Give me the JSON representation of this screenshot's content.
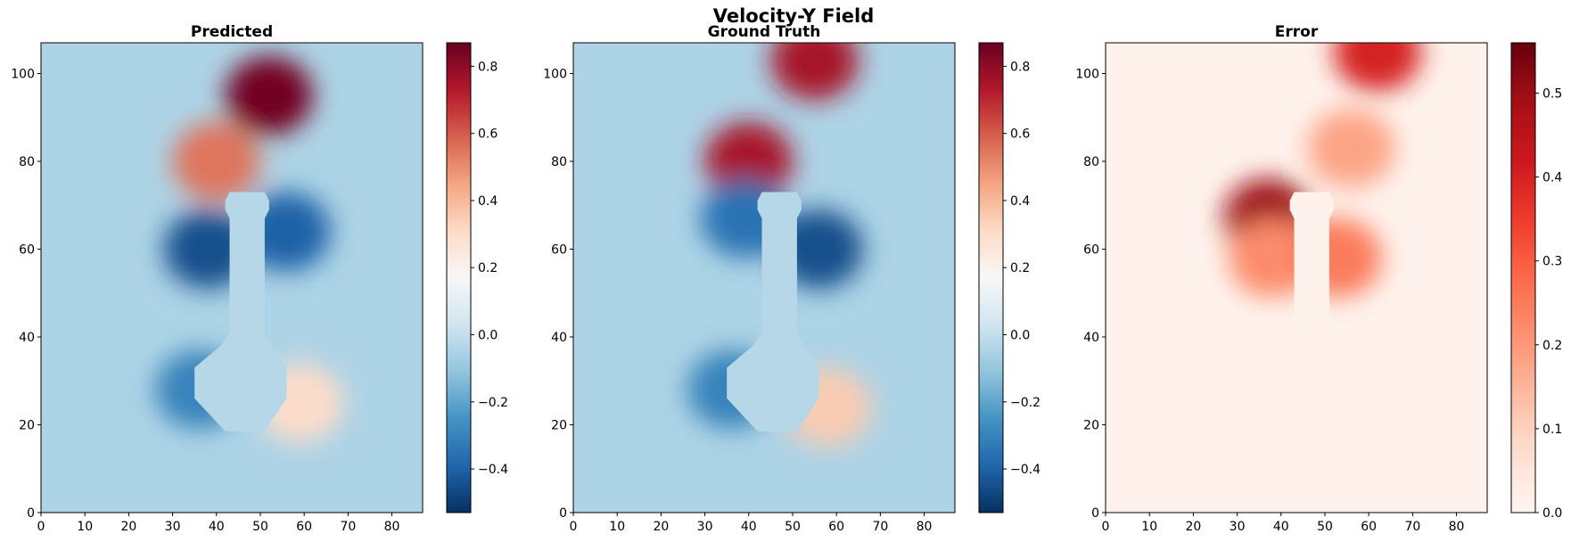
{
  "suptitle": "Velocity-Y Field",
  "chart_data": [
    {
      "type": "heatmap",
      "title": "Predicted",
      "colormap": "RdBu_r",
      "xlim": [
        0,
        87
      ],
      "ylim": [
        0,
        107
      ],
      "x_ticks": [
        0,
        10,
        20,
        30,
        40,
        50,
        60,
        70,
        80
      ],
      "y_ticks": [
        0,
        20,
        40,
        60,
        80,
        100
      ],
      "x_tick_labels": [
        "0",
        "10",
        "20",
        "30",
        "40",
        "50",
        "60",
        "70",
        "80"
      ],
      "y_tick_labels": [
        "0",
        "20",
        "40",
        "60",
        "80",
        "100"
      ],
      "colorbar": {
        "range": [
          -0.53,
          0.87
        ],
        "ticks": [
          -0.4,
          -0.2,
          0.0,
          0.2,
          0.4,
          0.6,
          0.8
        ],
        "tick_labels": [
          "−0.4",
          "−0.2",
          "0.0",
          "0.2",
          "0.4",
          "0.6",
          "0.8"
        ]
      },
      "features": [
        {
          "kind": "positive-lobe",
          "x": 52,
          "y": 95,
          "value": 0.85
        },
        {
          "kind": "positive-lobe",
          "x": 40,
          "y": 80,
          "value": 0.55
        },
        {
          "kind": "negative-lobe",
          "x": 38,
          "y": 60,
          "value": -0.45
        },
        {
          "kind": "negative-lobe",
          "x": 56,
          "y": 64,
          "value": -0.4
        },
        {
          "kind": "negative-lobe",
          "x": 36,
          "y": 28,
          "value": -0.3
        },
        {
          "kind": "positive-lobe",
          "x": 59,
          "y": 25,
          "value": 0.3
        }
      ]
    },
    {
      "type": "heatmap",
      "title": "Ground Truth",
      "colormap": "RdBu_r",
      "xlim": [
        0,
        87
      ],
      "ylim": [
        0,
        107
      ],
      "x_ticks": [
        0,
        10,
        20,
        30,
        40,
        50,
        60,
        70,
        80
      ],
      "y_ticks": [
        0,
        20,
        40,
        60,
        80,
        100
      ],
      "x_tick_labels": [
        "0",
        "10",
        "20",
        "30",
        "40",
        "50",
        "60",
        "70",
        "80"
      ],
      "y_tick_labels": [
        "0",
        "20",
        "40",
        "60",
        "80",
        "100"
      ],
      "colorbar": {
        "range": [
          -0.53,
          0.87
        ],
        "ticks": [
          -0.4,
          -0.2,
          0.0,
          0.2,
          0.4,
          0.6,
          0.8
        ],
        "tick_labels": [
          "−0.4",
          "−0.2",
          "0.0",
          "0.2",
          "0.4",
          "0.6",
          "0.8"
        ]
      },
      "features": [
        {
          "kind": "positive-lobe",
          "x": 55,
          "y": 103,
          "value": 0.75
        },
        {
          "kind": "positive-lobe",
          "x": 40,
          "y": 80,
          "value": 0.75
        },
        {
          "kind": "negative-lobe",
          "x": 39,
          "y": 67,
          "value": -0.35
        },
        {
          "kind": "negative-lobe",
          "x": 56,
          "y": 60,
          "value": -0.45
        },
        {
          "kind": "negative-lobe",
          "x": 36,
          "y": 28,
          "value": -0.3
        },
        {
          "kind": "positive-lobe",
          "x": 58,
          "y": 24,
          "value": 0.35
        }
      ]
    },
    {
      "type": "heatmap",
      "title": "Error",
      "colormap": "Reds",
      "xlim": [
        0,
        87
      ],
      "ylim": [
        0,
        107
      ],
      "x_ticks": [
        0,
        10,
        20,
        30,
        40,
        50,
        60,
        70,
        80
      ],
      "y_ticks": [
        0,
        20,
        40,
        60,
        80,
        100
      ],
      "x_tick_labels": [
        "0",
        "10",
        "20",
        "30",
        "40",
        "50",
        "60",
        "70",
        "80"
      ],
      "y_tick_labels": [
        "0",
        "20",
        "40",
        "60",
        "80",
        "100"
      ],
      "colorbar": {
        "range": [
          0,
          0.56
        ],
        "ticks": [
          0.0,
          0.1,
          0.2,
          0.3,
          0.4,
          0.5
        ],
        "tick_labels": [
          "0.0",
          "0.1",
          "0.2",
          "0.3",
          "0.4",
          "0.5"
        ]
      },
      "features": [
        {
          "kind": "hotspot",
          "x": 37,
          "y": 67,
          "value": 0.5
        },
        {
          "kind": "hotspot",
          "x": 38,
          "y": 58,
          "value": 0.22
        },
        {
          "kind": "hotspot",
          "x": 53,
          "y": 58,
          "value": 0.25
        },
        {
          "kind": "hotspot",
          "x": 62,
          "y": 105,
          "value": 0.4
        },
        {
          "kind": "hotspot",
          "x": 56,
          "y": 83,
          "value": 0.18
        }
      ]
    }
  ]
}
